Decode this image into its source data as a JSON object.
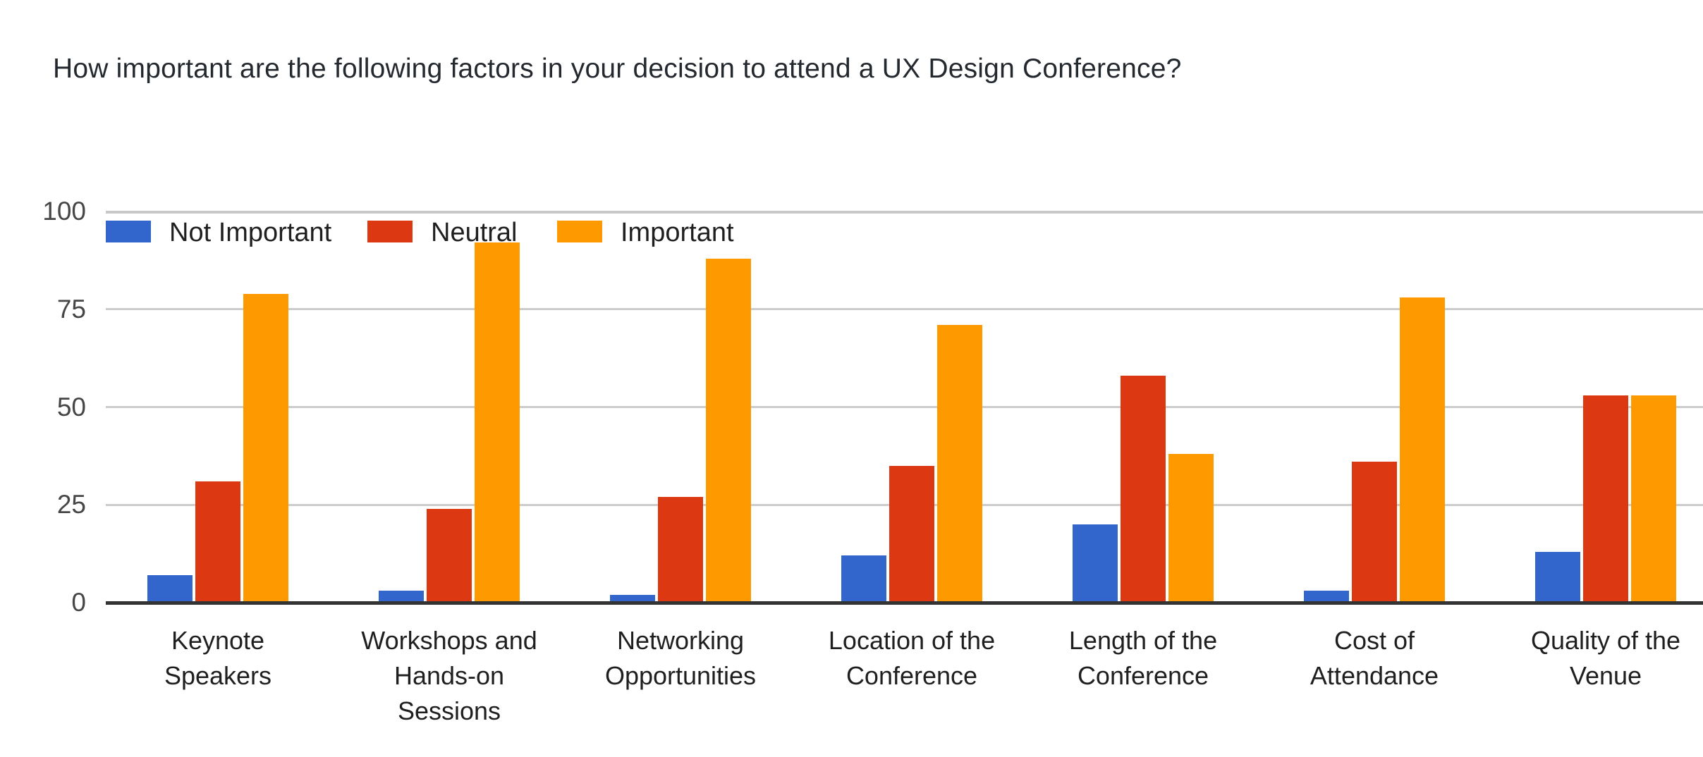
{
  "title": "How important are the following factors in your decision to attend a UX Design Conference?",
  "colors": {
    "not_important": "#3366CC",
    "neutral": "#DC3912",
    "important": "#FF9900",
    "gridline": "#CCCCCC",
    "axis_line": "#333333",
    "title_text": "#24292F",
    "tick_text": "#464646",
    "label_text": "#1F1F1F",
    "background": "#FFFFFF"
  },
  "chart_data": {
    "type": "bar",
    "title": "How important are the following factors in your decision to attend a UX Design Conference?",
    "categories": [
      "Keynote Speakers",
      "Workshops and Hands-on Sessions",
      "Networking Opportunities",
      "Location of the Conference",
      "Length of the Conference",
      "Cost of Attendance",
      "Quality of the Venue"
    ],
    "category_lines": [
      [
        "Keynote",
        "Speakers"
      ],
      [
        "Workshops and",
        "Hands-on",
        "Sessions"
      ],
      [
        "Networking",
        "Opportunities"
      ],
      [
        "Location of the",
        "Conference"
      ],
      [
        "Length of the",
        "Conference"
      ],
      [
        "Cost of",
        "Attendance"
      ],
      [
        "Quality of the",
        "Venue"
      ]
    ],
    "series": [
      {
        "name": "Not Important",
        "color": "#3366CC",
        "values": [
          7,
          3,
          2,
          12,
          20,
          3,
          13
        ]
      },
      {
        "name": "Neutral",
        "color": "#DC3912",
        "values": [
          31,
          24,
          27,
          35,
          58,
          36,
          53
        ]
      },
      {
        "name": "Important",
        "color": "#FF9900",
        "values": [
          79,
          92,
          88,
          71,
          38,
          78,
          53
        ]
      }
    ],
    "y_ticks": [
      0,
      25,
      50,
      75,
      100
    ],
    "ylim": [
      0,
      100
    ],
    "xlabel": "",
    "ylabel": "",
    "grid": true,
    "legend_position": "top-left-inside"
  }
}
